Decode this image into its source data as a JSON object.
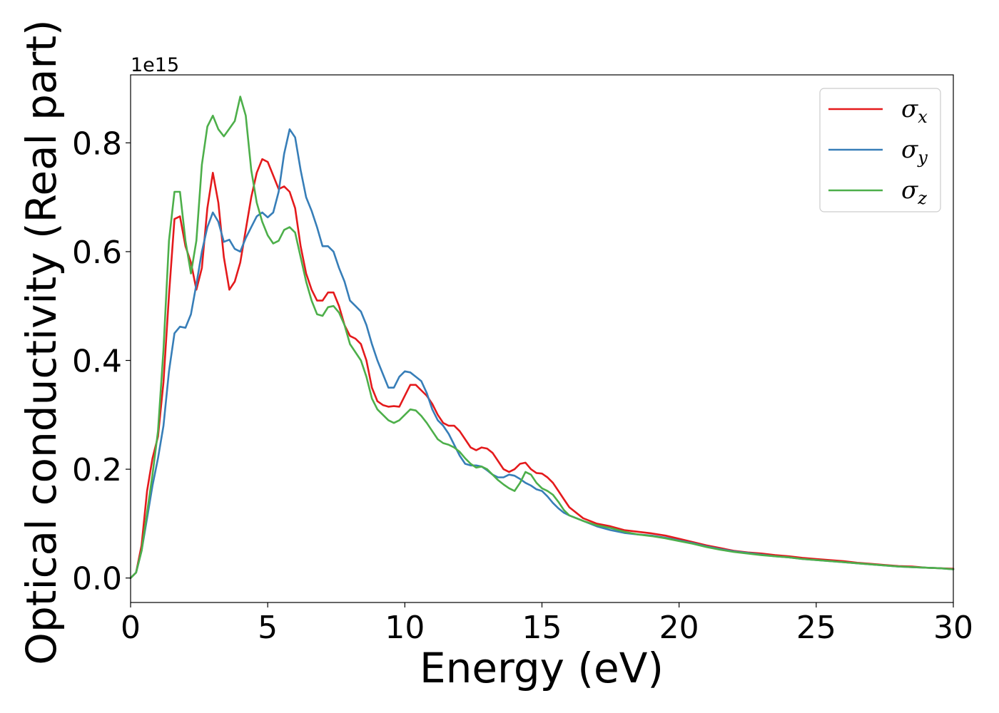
{
  "chart_data": {
    "type": "line",
    "xlabel": "Energy (eV)",
    "ylabel": "Optical conductivity (Real part)",
    "y_offset_label": "1e15",
    "xlim": [
      0,
      30
    ],
    "ylim": [
      -0.045,
      0.925
    ],
    "xticks": [
      0,
      5,
      10,
      15,
      20,
      25,
      30
    ],
    "xtick_labels": [
      "0",
      "5",
      "10",
      "15",
      "20",
      "25",
      "30"
    ],
    "yticks": [
      0.0,
      0.2,
      0.4,
      0.6,
      0.8
    ],
    "ytick_labels": [
      "0.0",
      "0.2",
      "0.4",
      "0.6",
      "0.8"
    ],
    "grid": false,
    "legend_position": "top-right",
    "series": [
      {
        "name": "σx",
        "symbol": "σ",
        "sub": "x",
        "color": "#e41a1c",
        "x": [
          0,
          0.2,
          0.4,
          0.6,
          0.8,
          1.0,
          1.2,
          1.4,
          1.6,
          1.8,
          2.0,
          2.2,
          2.4,
          2.6,
          2.8,
          3.0,
          3.2,
          3.4,
          3.6,
          3.8,
          4.0,
          4.2,
          4.4,
          4.6,
          4.8,
          5.0,
          5.2,
          5.4,
          5.6,
          5.8,
          6.0,
          6.2,
          6.4,
          6.6,
          6.8,
          7.0,
          7.2,
          7.4,
          7.6,
          7.8,
          8.0,
          8.2,
          8.4,
          8.6,
          8.8,
          9.0,
          9.2,
          9.4,
          9.6,
          9.8,
          10.0,
          10.2,
          10.4,
          10.6,
          10.8,
          11.0,
          11.2,
          11.4,
          11.6,
          11.8,
          12.0,
          12.2,
          12.4,
          12.6,
          12.8,
          13.0,
          13.2,
          13.4,
          13.6,
          13.8,
          14.0,
          14.2,
          14.4,
          14.6,
          14.8,
          15.0,
          15.2,
          15.4,
          15.6,
          15.8,
          16.0,
          16.5,
          17.0,
          17.5,
          18.0,
          18.5,
          19.0,
          19.5,
          20.0,
          20.5,
          21.0,
          21.5,
          22.0,
          22.5,
          23.0,
          23.5,
          24.0,
          24.5,
          25.0,
          25.5,
          26.0,
          26.5,
          27.0,
          27.5,
          28.0,
          28.5,
          29.0,
          29.5,
          30.0
        ],
        "y": [
          0.0,
          0.01,
          0.06,
          0.16,
          0.22,
          0.26,
          0.36,
          0.52,
          0.66,
          0.665,
          0.61,
          0.58,
          0.53,
          0.57,
          0.68,
          0.745,
          0.69,
          0.59,
          0.53,
          0.545,
          0.58,
          0.64,
          0.7,
          0.745,
          0.77,
          0.765,
          0.74,
          0.715,
          0.72,
          0.71,
          0.68,
          0.61,
          0.56,
          0.53,
          0.51,
          0.51,
          0.525,
          0.525,
          0.5,
          0.465,
          0.445,
          0.44,
          0.43,
          0.4,
          0.35,
          0.325,
          0.318,
          0.315,
          0.316,
          0.315,
          0.335,
          0.355,
          0.355,
          0.345,
          0.335,
          0.32,
          0.3,
          0.285,
          0.28,
          0.28,
          0.27,
          0.255,
          0.24,
          0.235,
          0.24,
          0.238,
          0.23,
          0.215,
          0.2,
          0.195,
          0.2,
          0.21,
          0.212,
          0.2,
          0.193,
          0.192,
          0.185,
          0.175,
          0.16,
          0.145,
          0.13,
          0.11,
          0.1,
          0.095,
          0.088,
          0.085,
          0.082,
          0.078,
          0.072,
          0.066,
          0.06,
          0.055,
          0.05,
          0.047,
          0.045,
          0.042,
          0.04,
          0.037,
          0.035,
          0.033,
          0.031,
          0.028,
          0.026,
          0.024,
          0.022,
          0.021,
          0.019,
          0.018,
          0.017
        ]
      },
      {
        "name": "σy",
        "symbol": "σ",
        "sub": "y",
        "color": "#377eb8",
        "x": [
          0,
          0.2,
          0.4,
          0.6,
          0.8,
          1.0,
          1.2,
          1.4,
          1.6,
          1.8,
          2.0,
          2.2,
          2.4,
          2.6,
          2.8,
          3.0,
          3.2,
          3.4,
          3.6,
          3.8,
          4.0,
          4.2,
          4.4,
          4.6,
          4.8,
          5.0,
          5.2,
          5.4,
          5.6,
          5.8,
          6.0,
          6.2,
          6.4,
          6.6,
          6.8,
          7.0,
          7.2,
          7.4,
          7.6,
          7.8,
          8.0,
          8.2,
          8.4,
          8.6,
          8.8,
          9.0,
          9.2,
          9.4,
          9.6,
          9.8,
          10.0,
          10.2,
          10.4,
          10.6,
          10.8,
          11.0,
          11.2,
          11.4,
          11.6,
          11.8,
          12.0,
          12.2,
          12.4,
          12.6,
          12.8,
          13.0,
          13.2,
          13.4,
          13.6,
          13.8,
          14.0,
          14.2,
          14.4,
          14.6,
          14.8,
          15.0,
          15.2,
          15.4,
          15.6,
          15.8,
          16.0,
          16.5,
          17.0,
          17.5,
          18.0,
          18.5,
          19.0,
          19.5,
          20.0,
          20.5,
          21.0,
          21.5,
          22.0,
          22.5,
          23.0,
          23.5,
          24.0,
          24.5,
          25.0,
          25.5,
          26.0,
          26.5,
          27.0,
          27.5,
          28.0,
          28.5,
          29.0,
          29.5,
          30.0
        ],
        "y": [
          0.0,
          0.01,
          0.05,
          0.11,
          0.17,
          0.22,
          0.28,
          0.38,
          0.45,
          0.462,
          0.46,
          0.485,
          0.54,
          0.6,
          0.645,
          0.672,
          0.655,
          0.618,
          0.622,
          0.605,
          0.6,
          0.625,
          0.645,
          0.665,
          0.672,
          0.663,
          0.672,
          0.71,
          0.78,
          0.825,
          0.81,
          0.75,
          0.7,
          0.675,
          0.645,
          0.61,
          0.61,
          0.6,
          0.57,
          0.545,
          0.51,
          0.5,
          0.49,
          0.465,
          0.43,
          0.4,
          0.375,
          0.35,
          0.35,
          0.37,
          0.38,
          0.378,
          0.37,
          0.362,
          0.34,
          0.31,
          0.29,
          0.28,
          0.265,
          0.245,
          0.225,
          0.21,
          0.207,
          0.207,
          0.205,
          0.198,
          0.19,
          0.185,
          0.185,
          0.19,
          0.188,
          0.182,
          0.175,
          0.17,
          0.163,
          0.16,
          0.15,
          0.138,
          0.128,
          0.12,
          0.115,
          0.105,
          0.095,
          0.088,
          0.083,
          0.08,
          0.078,
          0.074,
          0.069,
          0.064,
          0.058,
          0.053,
          0.049,
          0.046,
          0.043,
          0.04,
          0.038,
          0.035,
          0.033,
          0.031,
          0.029,
          0.027,
          0.025,
          0.023,
          0.021,
          0.02,
          0.019,
          0.018,
          0.016
        ]
      },
      {
        "name": "σz",
        "symbol": "σ",
        "sub": "z",
        "color": "#4daf4a",
        "x": [
          0,
          0.2,
          0.4,
          0.6,
          0.8,
          1.0,
          1.2,
          1.4,
          1.6,
          1.8,
          2.0,
          2.2,
          2.4,
          2.6,
          2.8,
          3.0,
          3.2,
          3.4,
          3.6,
          3.8,
          4.0,
          4.2,
          4.4,
          4.6,
          4.8,
          5.0,
          5.2,
          5.4,
          5.6,
          5.8,
          6.0,
          6.2,
          6.4,
          6.6,
          6.8,
          7.0,
          7.2,
          7.4,
          7.6,
          7.8,
          8.0,
          8.2,
          8.4,
          8.6,
          8.8,
          9.0,
          9.2,
          9.4,
          9.6,
          9.8,
          10.0,
          10.2,
          10.4,
          10.6,
          10.8,
          11.0,
          11.2,
          11.4,
          11.6,
          11.8,
          12.0,
          12.2,
          12.4,
          12.6,
          12.8,
          13.0,
          13.2,
          13.4,
          13.6,
          13.8,
          14.0,
          14.2,
          14.4,
          14.6,
          14.8,
          15.0,
          15.2,
          15.4,
          15.6,
          15.8,
          16.0,
          16.5,
          17.0,
          17.5,
          18.0,
          18.5,
          19.0,
          19.5,
          20.0,
          20.5,
          21.0,
          21.5,
          22.0,
          22.5,
          23.0,
          23.5,
          24.0,
          24.5,
          25.0,
          25.5,
          26.0,
          26.5,
          27.0,
          27.5,
          28.0,
          28.5,
          29.0,
          29.5,
          30.0
        ],
        "y": [
          0.0,
          0.01,
          0.05,
          0.12,
          0.19,
          0.27,
          0.42,
          0.62,
          0.71,
          0.71,
          0.62,
          0.56,
          0.62,
          0.76,
          0.83,
          0.85,
          0.825,
          0.812,
          0.826,
          0.84,
          0.885,
          0.85,
          0.75,
          0.69,
          0.655,
          0.63,
          0.615,
          0.62,
          0.64,
          0.645,
          0.635,
          0.59,
          0.545,
          0.51,
          0.485,
          0.482,
          0.498,
          0.5,
          0.488,
          0.465,
          0.43,
          0.415,
          0.4,
          0.37,
          0.33,
          0.31,
          0.3,
          0.29,
          0.285,
          0.29,
          0.3,
          0.31,
          0.308,
          0.298,
          0.285,
          0.27,
          0.255,
          0.248,
          0.245,
          0.24,
          0.232,
          0.22,
          0.21,
          0.203,
          0.205,
          0.2,
          0.19,
          0.18,
          0.172,
          0.165,
          0.16,
          0.175,
          0.195,
          0.19,
          0.175,
          0.165,
          0.16,
          0.153,
          0.14,
          0.125,
          0.115,
          0.105,
          0.097,
          0.092,
          0.085,
          0.08,
          0.077,
          0.073,
          0.068,
          0.063,
          0.057,
          0.052,
          0.048,
          0.045,
          0.042,
          0.04,
          0.038,
          0.035,
          0.033,
          0.031,
          0.029,
          0.027,
          0.025,
          0.023,
          0.021,
          0.02,
          0.019,
          0.018,
          0.016
        ]
      }
    ]
  }
}
